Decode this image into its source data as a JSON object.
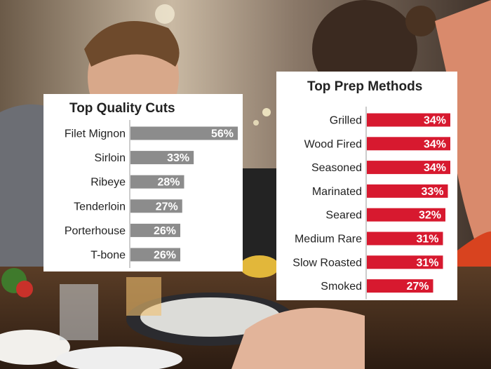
{
  "colors": {
    "cuts_bar": "#8c8c8c",
    "prep_bar": "#d7192f",
    "bar_label": "#ffffff",
    "text": "#222222"
  },
  "chart_data": [
    {
      "type": "bar",
      "orientation": "horizontal",
      "title": "Top Quality Cuts",
      "categories": [
        "Filet Mignon",
        "Sirloin",
        "Ribeye",
        "Tenderloin",
        "Porterhouse",
        "T-bone"
      ],
      "values": [
        56,
        33,
        28,
        27,
        26,
        26
      ],
      "labels": [
        "56%",
        "33%",
        "28%",
        "27%",
        "26%",
        "26%"
      ],
      "unit": "%",
      "xlim": [
        0,
        56
      ],
      "grid": false,
      "legend": "none",
      "color": "#8c8c8c"
    },
    {
      "type": "bar",
      "orientation": "horizontal",
      "title": "Top Prep Methods",
      "categories": [
        "Grilled",
        "Wood Fired",
        "Seasoned",
        "Marinated",
        "Seared",
        "Medium Rare",
        "Slow Roasted",
        "Smoked"
      ],
      "values": [
        34,
        34,
        34,
        33,
        32,
        31,
        31,
        27
      ],
      "labels": [
        "34%",
        "34%",
        "34%",
        "33%",
        "32%",
        "31%",
        "31%",
        "27%"
      ],
      "unit": "%",
      "xlim": [
        0,
        34
      ],
      "grid": false,
      "legend": "none",
      "color": "#d7192f"
    }
  ]
}
